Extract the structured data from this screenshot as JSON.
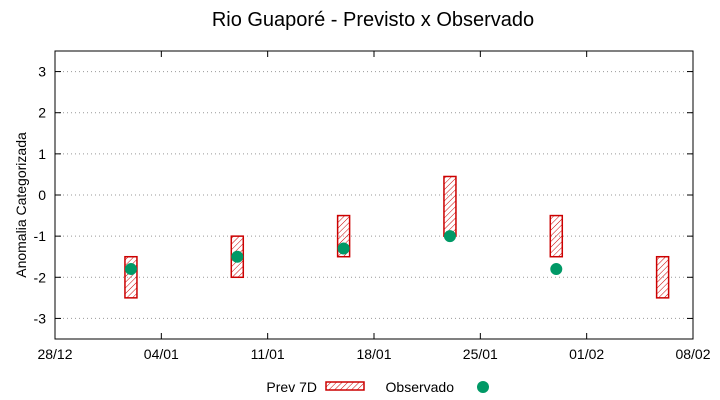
{
  "chart_data": {
    "type": "range-bar-scatter",
    "title": "Rio Guaporé - Previsto x Observado",
    "xlabel": "",
    "ylabel": "Anomalia Categorizada",
    "ylim": [
      -3.5,
      3.5
    ],
    "y_ticks": [
      3,
      2,
      1,
      0,
      -1,
      -2,
      -3
    ],
    "x_tick_labels": [
      "28/12",
      "04/01",
      "11/01",
      "18/01",
      "25/01",
      "01/02",
      "08/02"
    ],
    "x_range_days": [
      0,
      42
    ],
    "grid": "horizontal-dotted",
    "legend_position": "bottom-center",
    "series": [
      {
        "name": "Prev 7D",
        "kind": "range",
        "color": "#cc0000",
        "points": [
          {
            "x": 5,
            "low": -2.5,
            "high": -1.5
          },
          {
            "x": 12,
            "low": -2.0,
            "high": -1.0
          },
          {
            "x": 19,
            "low": -1.5,
            "high": -0.5
          },
          {
            "x": 26,
            "low": -1.0,
            "high": 0.45
          },
          {
            "x": 33,
            "low": -1.5,
            "high": -0.5
          },
          {
            "x": 40,
            "low": -2.5,
            "high": -1.5
          }
        ]
      },
      {
        "name": "Observado",
        "kind": "point",
        "color": "#009966",
        "points": [
          {
            "x": 5,
            "y": -1.8
          },
          {
            "x": 12,
            "y": -1.5
          },
          {
            "x": 19,
            "y": -1.3
          },
          {
            "x": 26,
            "y": -1.0
          },
          {
            "x": 33,
            "y": -1.8
          }
        ]
      }
    ]
  }
}
